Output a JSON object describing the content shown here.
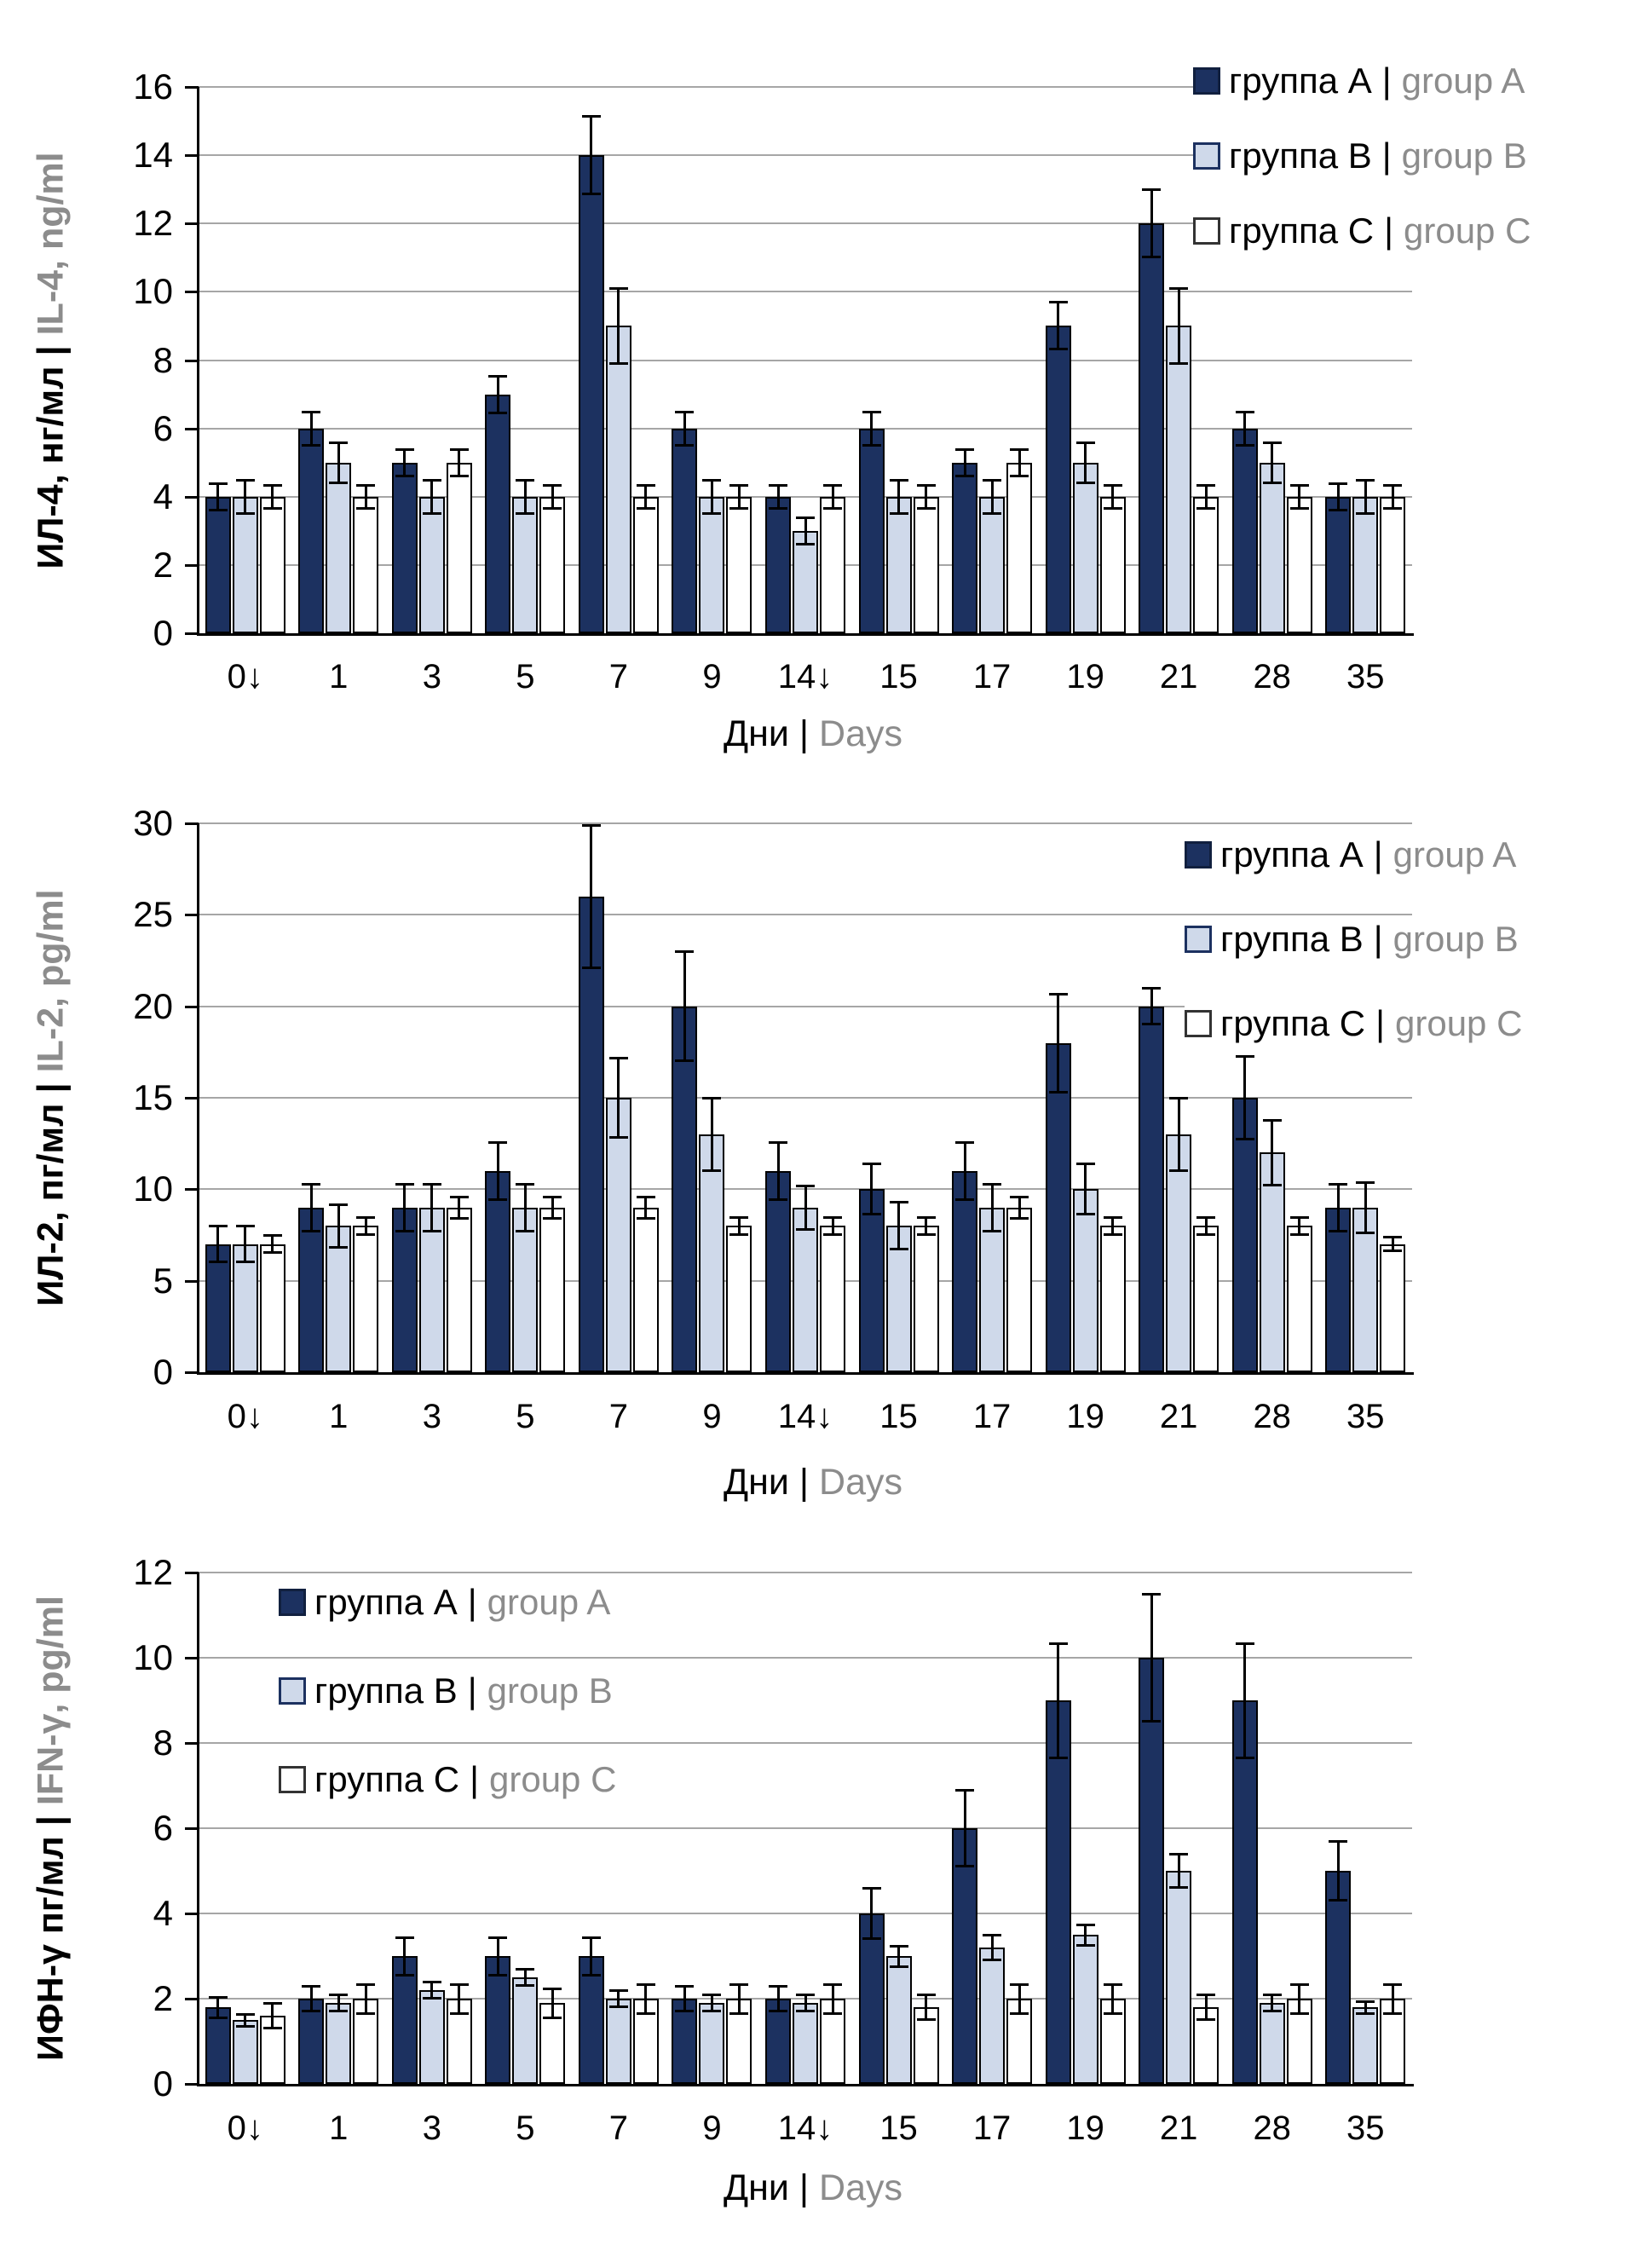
{
  "page": {
    "background": "#ffffff"
  },
  "labels": {
    "pipe": "|"
  },
  "colors": {
    "group_a_fill": "#1C3160",
    "group_b_fill": "#CFD9EA",
    "group_c_fill": "#FFFFFF",
    "bar_border": "#000000",
    "gridline": "#A6A6A6",
    "axis": "#000000",
    "text_primary": "#000000",
    "text_secondary": "#8C8C8C"
  },
  "chart_data": [
    {
      "type": "bar",
      "id": "il4",
      "ylabel_ru": "ИЛ-4, нг/мл",
      "ylabel_en": "IL-4, ng/ml",
      "xlabel_ru": "Дни",
      "xlabel_en": "Days",
      "ylim": [
        0,
        16
      ],
      "yticks": [
        0,
        2,
        4,
        6,
        8,
        10,
        12,
        14,
        16
      ],
      "grid": "on",
      "legend_position": "top-right",
      "categories": [
        "0↓",
        "1",
        "3",
        "5",
        "7",
        "9",
        "14↓",
        "15",
        "17",
        "19",
        "21",
        "28",
        "35"
      ],
      "series": [
        {
          "name_ru": "группа A",
          "name_en": "group A",
          "fill": "#1C3160",
          "values": [
            4,
            6,
            5,
            7,
            14,
            6,
            4,
            6,
            5,
            9,
            12,
            6,
            4
          ],
          "errors": [
            0.4,
            0.5,
            0.4,
            0.55,
            1.15,
            0.5,
            0.35,
            0.5,
            0.4,
            0.7,
            1.0,
            0.5,
            0.4
          ]
        },
        {
          "name_ru": "группа B",
          "name_en": "group B",
          "fill": "#CFD9EA",
          "values": [
            4,
            5,
            4,
            4,
            9,
            4,
            3,
            4,
            4,
            5,
            9,
            5,
            4
          ],
          "errors": [
            0.5,
            0.6,
            0.5,
            0.5,
            1.1,
            0.5,
            0.4,
            0.5,
            0.5,
            0.6,
            1.1,
            0.6,
            0.5
          ]
        },
        {
          "name_ru": "группа C",
          "name_en": "group C",
          "fill": "#FFFFFF",
          "values": [
            4,
            4,
            5,
            4,
            4,
            4,
            4,
            4,
            5,
            4,
            4,
            4,
            4
          ],
          "errors": [
            0.35,
            0.35,
            0.4,
            0.35,
            0.35,
            0.35,
            0.35,
            0.35,
            0.4,
            0.35,
            0.35,
            0.35,
            0.35
          ]
        }
      ]
    },
    {
      "type": "bar",
      "id": "il2",
      "ylabel_ru": "ИЛ-2, пг/мл",
      "ylabel_en": "IL-2, pg/ml",
      "xlabel_ru": "Дни",
      "xlabel_en": "Days",
      "ylim": [
        0,
        30
      ],
      "yticks": [
        0,
        5,
        10,
        15,
        20,
        25,
        30
      ],
      "grid": "on",
      "legend_position": "top-right",
      "categories": [
        "0↓",
        "1",
        "3",
        "5",
        "7",
        "9",
        "14↓",
        "15",
        "17",
        "19",
        "21",
        "28",
        "35"
      ],
      "series": [
        {
          "name_ru": "группа A",
          "name_en": "group A",
          "fill": "#1C3160",
          "values": [
            7,
            9,
            9,
            11,
            26,
            20,
            11,
            10,
            11,
            18,
            20,
            15,
            9
          ],
          "errors": [
            1.0,
            1.3,
            1.3,
            1.6,
            3.9,
            3.0,
            1.6,
            1.4,
            1.6,
            2.7,
            1.0,
            2.3,
            1.3
          ]
        },
        {
          "name_ru": "группа B",
          "name_en": "group B",
          "fill": "#CFD9EA",
          "values": [
            7,
            8,
            9,
            9,
            15,
            13,
            9,
            8,
            9,
            10,
            13,
            12,
            9
          ],
          "errors": [
            1.0,
            1.2,
            1.3,
            1.3,
            2.2,
            2.0,
            1.2,
            1.3,
            1.3,
            1.4,
            2.0,
            1.8,
            1.4
          ]
        },
        {
          "name_ru": "группа C",
          "name_en": "group C",
          "fill": "#FFFFFF",
          "values": [
            7,
            8,
            9,
            9,
            9,
            8,
            8,
            8,
            9,
            8,
            8,
            8,
            7
          ],
          "errors": [
            0.5,
            0.5,
            0.6,
            0.6,
            0.6,
            0.5,
            0.5,
            0.5,
            0.6,
            0.5,
            0.5,
            0.5,
            0.4
          ]
        }
      ]
    },
    {
      "type": "bar",
      "id": "ifng",
      "ylabel_ru": "ИФН-γ пг/мл",
      "ylabel_en": "IFN-γ, pg/ml",
      "xlabel_ru": "Дни",
      "xlabel_en": "Days",
      "ylim": [
        0,
        12
      ],
      "yticks": [
        0,
        2,
        4,
        6,
        8,
        10,
        12
      ],
      "grid": "on",
      "legend_position": "top-left",
      "categories": [
        "0↓",
        "1",
        "3",
        "5",
        "7",
        "9",
        "14↓",
        "15",
        "17",
        "19",
        "21",
        "28",
        "35"
      ],
      "series": [
        {
          "name_ru": "группа A",
          "name_en": "group A",
          "fill": "#1C3160",
          "values": [
            1.8,
            2,
            3,
            3,
            3,
            2,
            2,
            4,
            6,
            9,
            10,
            9,
            5
          ],
          "errors": [
            0.25,
            0.3,
            0.45,
            0.45,
            0.45,
            0.3,
            0.3,
            0.6,
            0.9,
            1.35,
            1.5,
            1.35,
            0.7
          ]
        },
        {
          "name_ru": "группа B",
          "name_en": "group B",
          "fill": "#CFD9EA",
          "values": [
            1.5,
            1.9,
            2.2,
            2.5,
            2,
            1.9,
            1.9,
            3,
            3.2,
            3.5,
            5,
            1.9,
            1.8
          ],
          "errors": [
            0.15,
            0.2,
            0.2,
            0.2,
            0.2,
            0.2,
            0.2,
            0.25,
            0.3,
            0.25,
            0.4,
            0.2,
            0.15
          ]
        },
        {
          "name_ru": "группа C",
          "name_en": "group C",
          "fill": "#FFFFFF",
          "values": [
            1.6,
            2,
            2,
            1.9,
            2,
            2,
            2,
            1.8,
            2,
            2,
            1.8,
            2,
            2
          ],
          "errors": [
            0.3,
            0.35,
            0.35,
            0.35,
            0.35,
            0.35,
            0.35,
            0.3,
            0.35,
            0.35,
            0.3,
            0.35,
            0.35
          ]
        }
      ]
    }
  ]
}
